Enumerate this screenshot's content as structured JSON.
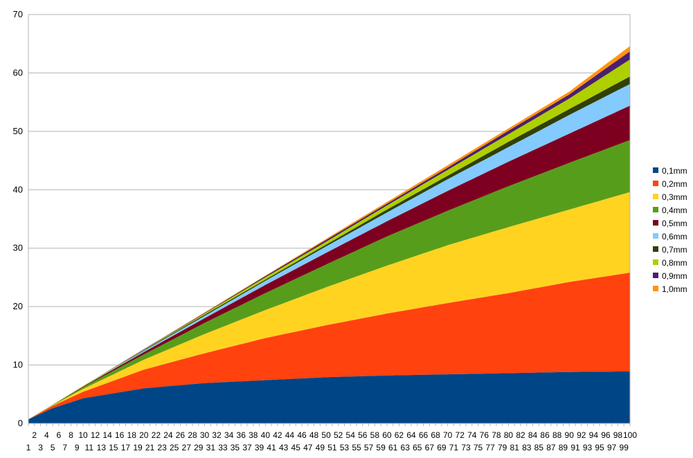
{
  "chart_data": {
    "type": "area",
    "stacked": true,
    "title": "",
    "xlabel": "",
    "ylabel": "",
    "ylim": [
      0,
      70
    ],
    "yticks": [
      0,
      10,
      20,
      30,
      40,
      50,
      60,
      70
    ],
    "x_categories": "1..100",
    "grid": "horizontal",
    "legend_placement": "right",
    "series": [
      {
        "name": "0,1mm",
        "color": "#004586",
        "cumulative_samples": {
          "1": 0.7,
          "5": 2.6,
          "10": 4.3,
          "20": 6.0,
          "30": 6.9,
          "40": 7.4,
          "50": 7.9,
          "60": 8.2,
          "70": 8.4,
          "80": 8.6,
          "90": 8.8,
          "100": 8.9
        }
      },
      {
        "name": "0,2mm",
        "color": "#FF420E",
        "cumulative_samples": {
          "1": 0.7,
          "5": 3.0,
          "10": 5.4,
          "20": 9.2,
          "30": 12.0,
          "40": 14.6,
          "50": 16.8,
          "60": 18.8,
          "70": 20.6,
          "80": 22.3,
          "90": 24.2,
          "100": 25.8
        }
      },
      {
        "name": "0,3mm",
        "color": "#FFD320",
        "cumulative_samples": {
          "1": 0.7,
          "5": 3.1,
          "10": 5.9,
          "20": 10.9,
          "30": 15.3,
          "40": 19.4,
          "50": 23.3,
          "60": 27.0,
          "70": 30.5,
          "80": 33.6,
          "90": 36.6,
          "100": 39.6
        }
      },
      {
        "name": "0,4mm",
        "color": "#579D1C",
        "cumulative_samples": {
          "1": 0.7,
          "5": 3.2,
          "10": 6.2,
          "20": 11.8,
          "30": 17.2,
          "40": 22.3,
          "50": 27.2,
          "60": 32.0,
          "70": 36.4,
          "80": 40.6,
          "90": 44.6,
          "100": 48.5
        }
      },
      {
        "name": "0,5mm",
        "color": "#7E0021",
        "cumulative_samples": {
          "1": 0.7,
          "5": 3.2,
          "10": 6.3,
          "20": 12.2,
          "30": 18.0,
          "40": 23.7,
          "50": 29.2,
          "60": 34.6,
          "70": 39.8,
          "80": 44.8,
          "90": 49.6,
          "100": 54.4
        }
      },
      {
        "name": "0,6mm",
        "color": "#83CAFF",
        "cumulative_samples": {
          "1": 0.7,
          "5": 3.2,
          "10": 6.3,
          "20": 12.4,
          "30": 18.4,
          "40": 24.4,
          "50": 30.3,
          "60": 36.1,
          "70": 41.8,
          "80": 47.3,
          "90": 52.8,
          "100": 58.1
        }
      },
      {
        "name": "0,7mm",
        "color": "#314004",
        "cumulative_samples": {
          "1": 0.7,
          "5": 3.2,
          "10": 6.3,
          "20": 12.5,
          "30": 18.6,
          "40": 24.6,
          "50": 30.6,
          "60": 36.6,
          "70": 42.4,
          "80": 48.2,
          "90": 53.8,
          "100": 59.4
        }
      },
      {
        "name": "0,8mm",
        "color": "#AECF00",
        "cumulative_samples": {
          "1": 0.7,
          "5": 3.2,
          "10": 6.4,
          "20": 12.6,
          "30": 18.8,
          "40": 25.0,
          "50": 31.1,
          "60": 37.3,
          "70": 43.4,
          "80": 49.5,
          "90": 55.6,
          "100": 62.3
        }
      },
      {
        "name": "0,9mm",
        "color": "#4B1F6F",
        "cumulative_samples": {
          "1": 0.7,
          "5": 3.2,
          "10": 6.4,
          "20": 12.7,
          "30": 18.9,
          "40": 25.2,
          "50": 31.4,
          "60": 37.6,
          "70": 43.8,
          "80": 50.1,
          "90": 56.3,
          "100": 63.7
        }
      },
      {
        "name": "1,0mm",
        "color": "#FF950E",
        "cumulative_samples": {
          "1": 0.7,
          "5": 3.2,
          "10": 6.4,
          "20": 12.7,
          "30": 19.0,
          "40": 25.3,
          "50": 31.6,
          "60": 37.9,
          "70": 44.2,
          "80": 50.5,
          "90": 56.8,
          "100": 64.6
        }
      }
    ]
  }
}
